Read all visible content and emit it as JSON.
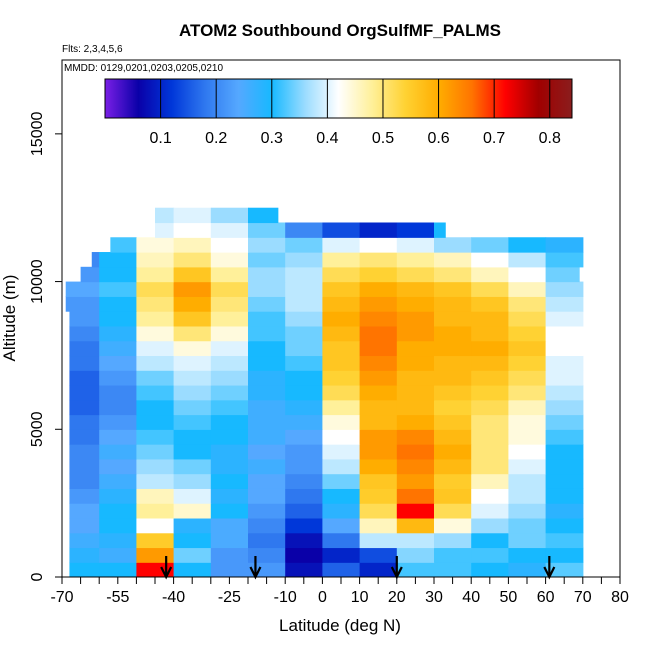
{
  "chart_data": {
    "type": "heatmap",
    "title": "ATOM2 Southbound OrgSulfMF_PALMS",
    "flights_note": "Flts: 2,3,4,5,6",
    "dates_note": "MMDD: 0129,0201,0203,0205,0210",
    "xlabel": "Latitude (deg N)",
    "ylabel": "Altitude (m)",
    "xlim": [
      -70,
      80
    ],
    "ylim": [
      0,
      17500
    ],
    "x_ticks": [
      -70,
      -55,
      -40,
      -25,
      -10,
      0,
      10,
      20,
      30,
      40,
      50,
      60,
      70,
      80
    ],
    "x_tick_labels": [
      "-70",
      "-55",
      "-40",
      "-25",
      "-10",
      "0",
      "10",
      "20",
      "30",
      "40",
      "50",
      "60",
      "70",
      "80"
    ],
    "y_ticks": [
      0,
      5000,
      10000,
      15000
    ],
    "y_tick_labels": [
      "0",
      "5000",
      "10000",
      "15000"
    ],
    "colorbar": {
      "range": [
        0.0,
        0.84
      ],
      "ticks": [
        0.1,
        0.2,
        0.3,
        0.4,
        0.5,
        0.6,
        0.7,
        0.8
      ],
      "tick_labels": [
        "0.1",
        "0.2",
        "0.3",
        "0.4",
        "0.5",
        "0.6",
        "0.7",
        "0.8"
      ],
      "colors": [
        "#7a1fe6",
        "#0a00a8",
        "#0037d9",
        "#2f78ef",
        "#55a8ff",
        "#17b9ff",
        "#9bdcff",
        "#ffffff",
        "#fff09a",
        "#ffd233",
        "#ffad00",
        "#ff7400",
        "#ff0000",
        "#a00000",
        "#8b1d1d"
      ]
    },
    "arrow_markers_latitude": [
      -42,
      -18,
      20,
      61
    ],
    "altitude_levels": [
      250,
      750,
      1250,
      1750,
      2250,
      2750,
      3250,
      3750,
      4250,
      4750,
      5250,
      5750,
      6250,
      6750,
      7250,
      7750,
      8250,
      8750,
      9250,
      9750,
      10250,
      10750,
      11250,
      11750,
      12250
    ],
    "level_lat_extent": [
      [
        -68,
        73
      ],
      [
        -68,
        72
      ],
      [
        -68,
        72
      ],
      [
        -68,
        72
      ],
      [
        -68,
        72
      ],
      [
        -68,
        72
      ],
      [
        -68,
        72
      ],
      [
        -68,
        72
      ],
      [
        -68,
        72
      ],
      [
        -68,
        72
      ],
      [
        -68,
        72
      ],
      [
        -68,
        72
      ],
      [
        -68,
        72
      ],
      [
        -68,
        72
      ],
      [
        -68,
        72
      ],
      [
        -68,
        72
      ],
      [
        -68,
        72
      ],
      [
        -68,
        72
      ],
      [
        -69,
        71
      ],
      [
        -69,
        71
      ],
      [
        -65,
        69
      ],
      [
        -62,
        70
      ],
      [
        -57,
        70
      ],
      [
        -45,
        33
      ],
      [
        -45,
        -12
      ]
    ],
    "latitude_bands": [
      -65,
      -55,
      -45,
      -35,
      -25,
      -15,
      -5,
      5,
      15,
      25,
      35,
      45,
      55,
      65
    ],
    "values": [
      [
        0.3,
        0.3,
        0.72,
        0.3,
        0.22,
        0.22,
        0.08,
        0.16,
        0.1,
        0.32,
        0.32,
        0.3,
        0.28,
        0.33
      ],
      [
        0.28,
        0.26,
        0.62,
        0.34,
        0.22,
        0.2,
        0.06,
        0.1,
        0.14,
        0.35,
        0.32,
        0.32,
        0.3,
        0.3
      ],
      [
        0.26,
        0.28,
        0.55,
        0.3,
        0.25,
        0.18,
        0.08,
        0.18,
        0.38,
        0.38,
        0.36,
        0.3,
        0.34,
        0.32
      ],
      [
        0.24,
        0.3,
        0.42,
        0.28,
        0.25,
        0.2,
        0.12,
        0.24,
        0.46,
        0.58,
        0.44,
        0.36,
        0.34,
        0.3
      ],
      [
        0.24,
        0.3,
        0.48,
        0.45,
        0.3,
        0.22,
        0.16,
        0.28,
        0.52,
        0.72,
        0.52,
        0.4,
        0.36,
        0.28
      ],
      [
        0.22,
        0.28,
        0.46,
        0.4,
        0.28,
        0.24,
        0.18,
        0.3,
        0.55,
        0.66,
        0.56,
        0.42,
        0.38,
        0.3
      ],
      [
        0.2,
        0.26,
        0.38,
        0.36,
        0.3,
        0.24,
        0.2,
        0.34,
        0.56,
        0.62,
        0.55,
        0.46,
        0.38,
        0.3
      ],
      [
        0.2,
        0.24,
        0.36,
        0.34,
        0.28,
        0.26,
        0.22,
        0.38,
        0.6,
        0.64,
        0.58,
        0.5,
        0.4,
        0.3
      ],
      [
        0.2,
        0.26,
        0.34,
        0.3,
        0.28,
        0.24,
        0.22,
        0.4,
        0.62,
        0.66,
        0.6,
        0.5,
        0.42,
        0.3
      ],
      [
        0.18,
        0.24,
        0.32,
        0.3,
        0.3,
        0.26,
        0.24,
        0.42,
        0.62,
        0.64,
        0.58,
        0.5,
        0.44,
        0.32
      ],
      [
        0.18,
        0.22,
        0.3,
        0.32,
        0.3,
        0.26,
        0.26,
        0.44,
        0.58,
        0.6,
        0.56,
        0.5,
        0.44,
        0.34
      ],
      [
        0.16,
        0.2,
        0.3,
        0.34,
        0.32,
        0.26,
        0.28,
        0.48,
        0.58,
        0.58,
        0.54,
        0.52,
        0.46,
        0.36
      ],
      [
        0.16,
        0.2,
        0.32,
        0.36,
        0.34,
        0.28,
        0.3,
        0.52,
        0.6,
        0.58,
        0.56,
        0.54,
        0.5,
        0.38
      ],
      [
        0.16,
        0.22,
        0.34,
        0.38,
        0.36,
        0.28,
        0.3,
        0.54,
        0.62,
        0.58,
        0.58,
        0.56,
        0.52,
        0.4
      ],
      [
        0.18,
        0.24,
        0.38,
        0.4,
        0.38,
        0.3,
        0.32,
        0.56,
        0.64,
        0.6,
        0.58,
        0.58,
        0.54,
        0.4
      ],
      [
        0.18,
        0.26,
        0.4,
        0.44,
        0.4,
        0.3,
        0.34,
        0.56,
        0.66,
        0.6,
        0.6,
        0.6,
        0.56,
        0.42
      ],
      [
        0.2,
        0.28,
        0.44,
        0.5,
        0.44,
        0.32,
        0.34,
        0.58,
        0.66,
        0.62,
        0.6,
        0.58,
        0.54,
        0.42
      ],
      [
        0.22,
        0.3,
        0.48,
        0.56,
        0.48,
        0.32,
        0.36,
        0.6,
        0.64,
        0.62,
        0.58,
        0.58,
        0.52,
        0.4
      ],
      [
        0.22,
        0.3,
        0.5,
        0.6,
        0.5,
        0.34,
        0.38,
        0.58,
        0.62,
        0.6,
        0.58,
        0.56,
        0.5,
        0.38
      ],
      [
        0.24,
        0.32,
        0.52,
        0.62,
        0.52,
        0.36,
        0.38,
        0.56,
        0.6,
        0.58,
        0.56,
        0.52,
        0.46,
        0.36
      ],
      [
        0.22,
        0.3,
        0.48,
        0.56,
        0.48,
        0.36,
        0.38,
        0.52,
        0.54,
        0.52,
        0.5,
        0.46,
        0.42,
        0.34
      ],
      [
        0.2,
        0.3,
        0.46,
        0.5,
        0.44,
        0.34,
        0.36,
        0.48,
        0.5,
        0.48,
        0.46,
        0.42,
        0.38,
        0.32
      ],
      [
        0.22,
        0.32,
        0.44,
        0.46,
        0.42,
        0.36,
        0.34,
        0.4,
        0.42,
        0.4,
        0.36,
        0.34,
        0.3,
        0.28
      ],
      [
        0.2,
        0.3,
        0.4,
        0.42,
        0.4,
        0.34,
        0.2,
        0.14,
        0.1,
        0.12,
        0.3,
        0.3,
        0.3,
        0.3
      ],
      [
        0.18,
        0.28,
        0.38,
        0.4,
        0.36,
        0.3,
        0.3,
        0.3,
        0.3,
        0.3,
        0.3,
        0.3,
        0.3,
        0.3
      ]
    ]
  }
}
